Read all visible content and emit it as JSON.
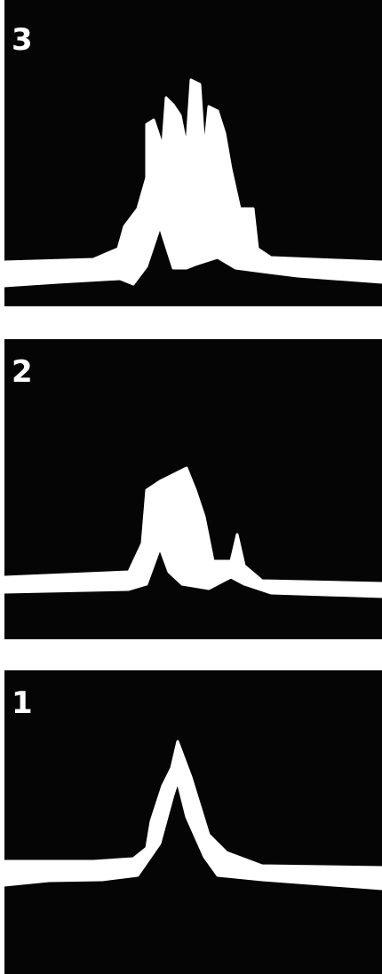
{
  "panels": [
    {
      "label": "3"
    },
    {
      "label": "2"
    },
    {
      "label": "1"
    }
  ]
}
